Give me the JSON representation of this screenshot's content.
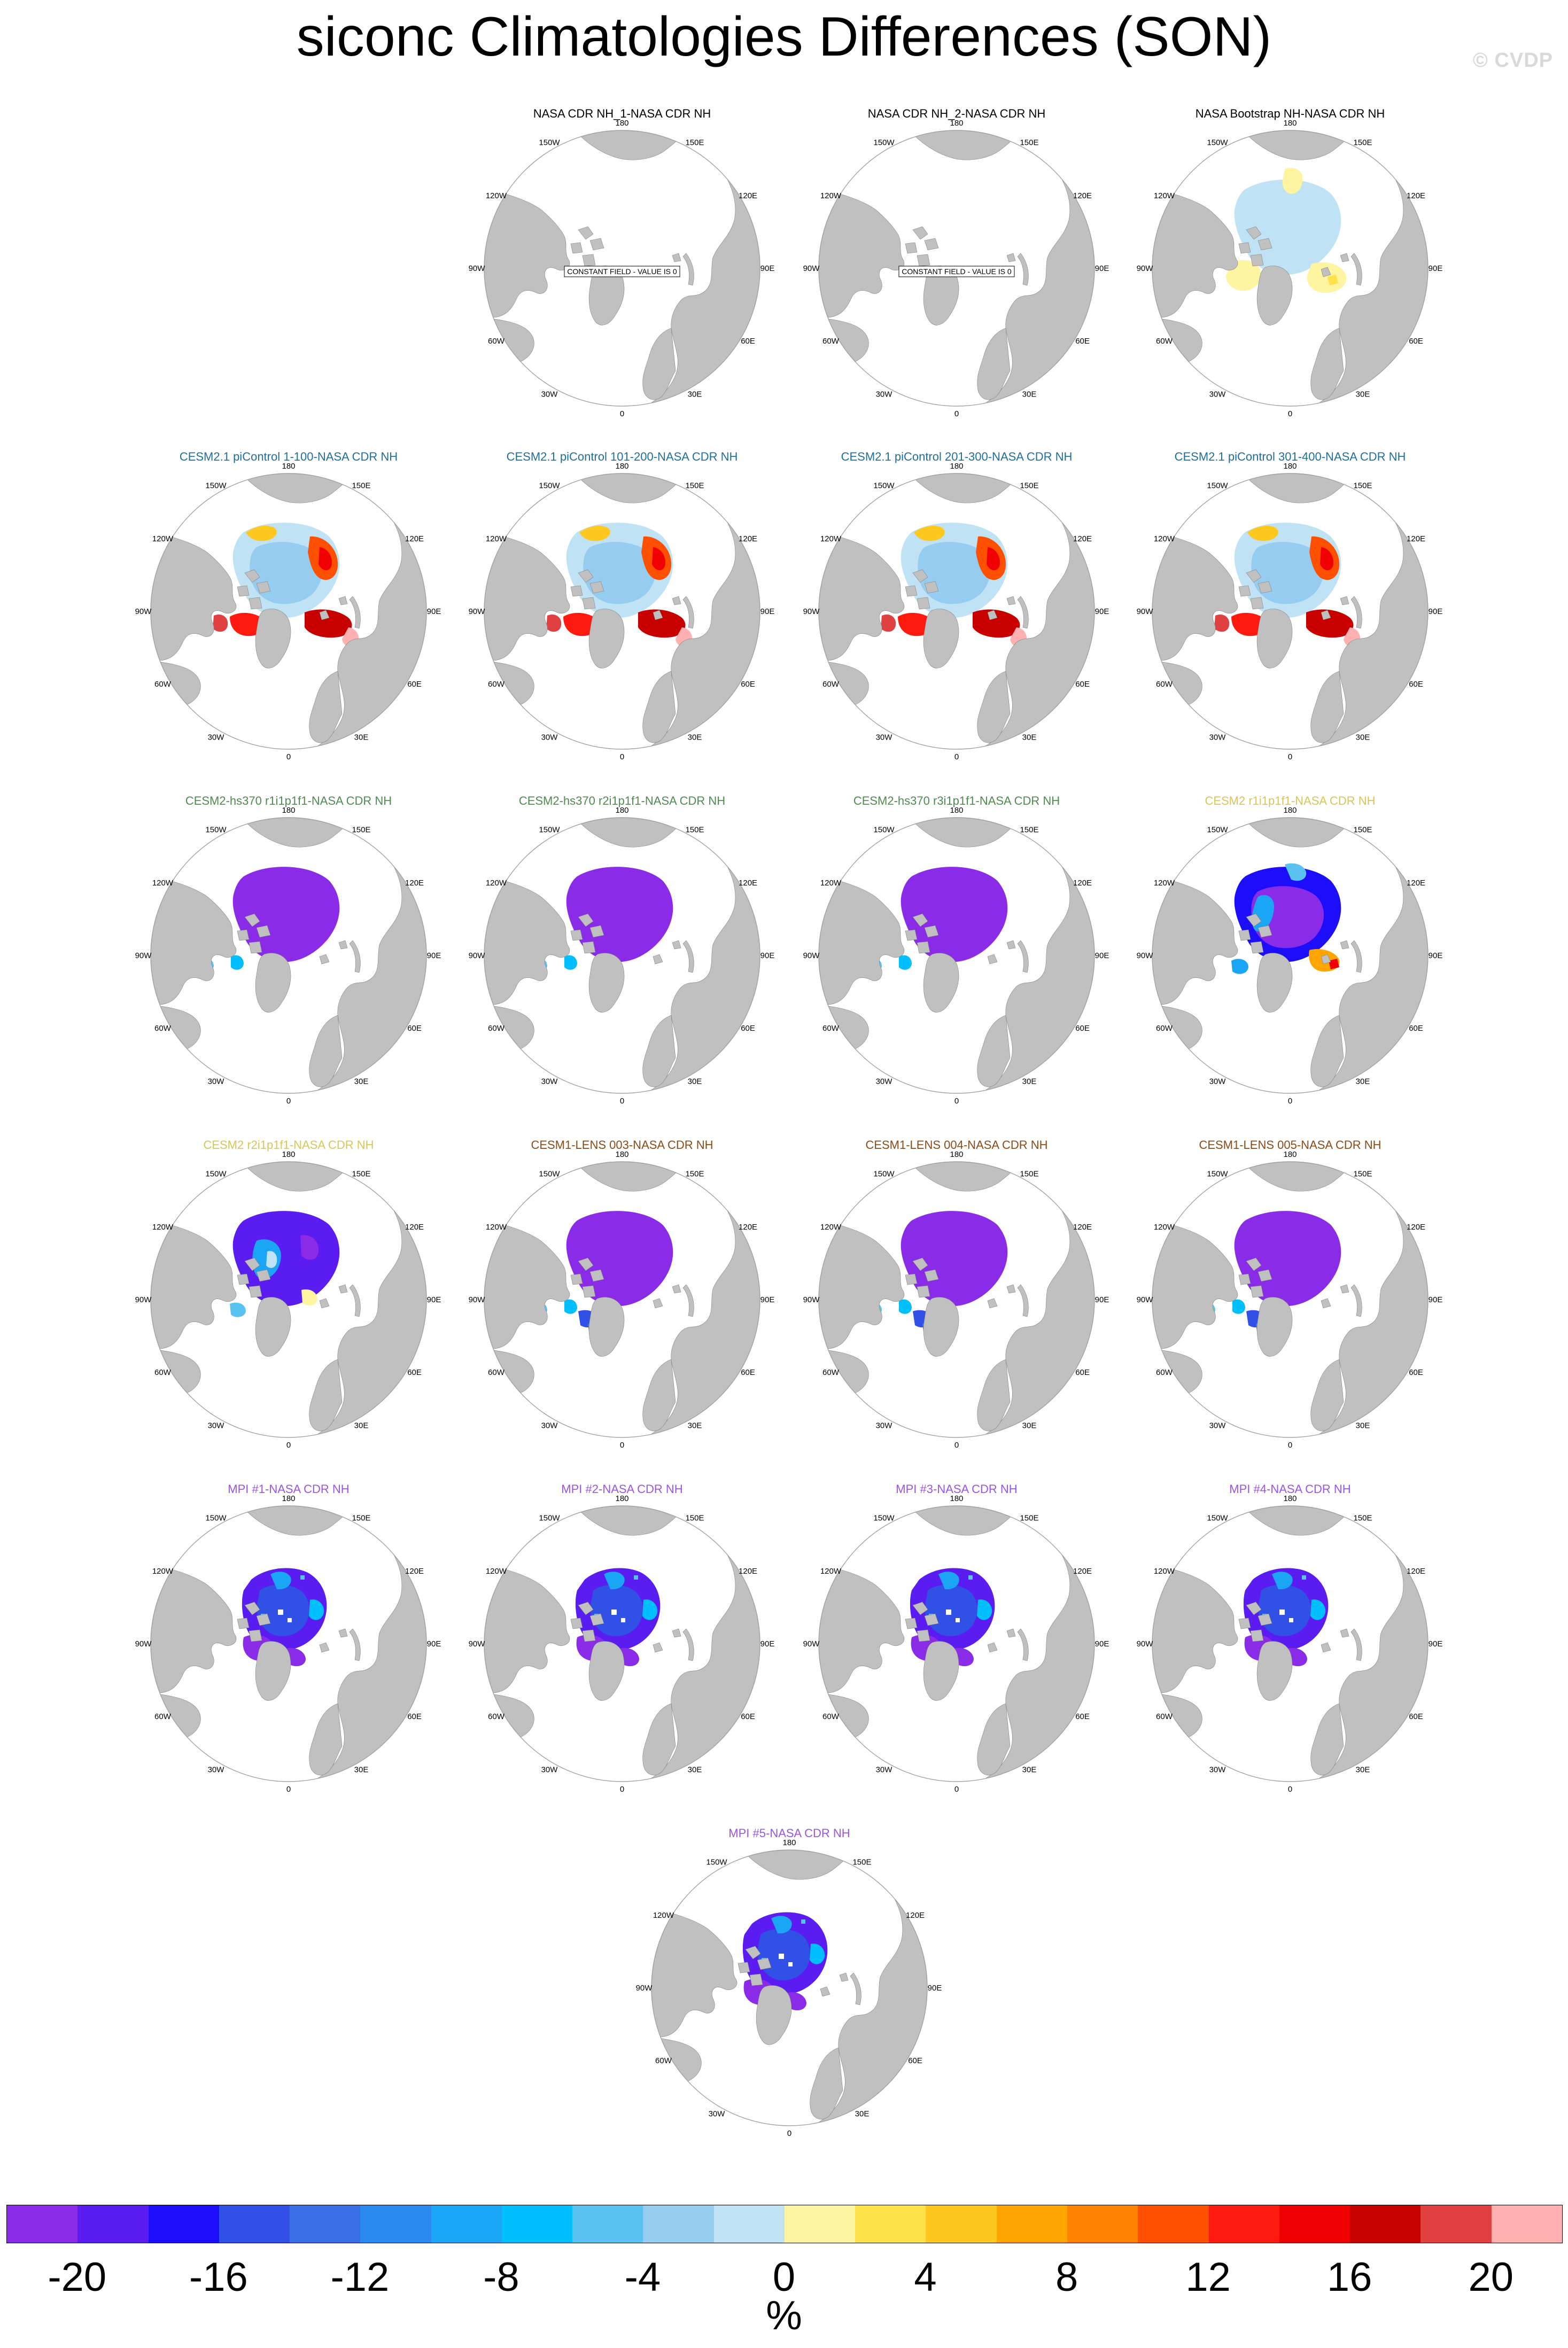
{
  "title": "siconc Climatologies Differences (SON)",
  "watermark": "© CVDP",
  "colors": {
    "ocean_zero": "#ffffff",
    "land": "#c0c0c0",
    "coast": "#808080",
    "frame": "#a0a0a0"
  },
  "lat_lon_labels": [
    "180",
    "150E",
    "120E",
    "90E",
    "60E",
    "30E",
    "0",
    "30W",
    "60W",
    "90W",
    "120W",
    "150W"
  ],
  "constant_field_note": "CONSTANT FIELD - VALUE IS 0",
  "panels": [
    {
      "title": "NASA CDR NH_1-NASA CDR NH",
      "title_color": "#000000",
      "pattern": "constant"
    },
    {
      "title": "NASA CDR NH_2-NASA CDR NH",
      "title_color": "#000000",
      "pattern": "constant"
    },
    {
      "title": "NASA Bootstrap NH-NASA CDR NH",
      "title_color": "#000000",
      "pattern": "bootstrap"
    },
    {
      "title": "CESM2.1 piControl 1-100-NASA CDR NH",
      "title_color": "#1f6e9c",
      "pattern": "picontrol"
    },
    {
      "title": "CESM2.1 piControl 101-200-NASA CDR NH",
      "title_color": "#1f6e9c",
      "pattern": "picontrol"
    },
    {
      "title": "CESM2.1 piControl 201-300-NASA CDR NH",
      "title_color": "#1f6e9c",
      "pattern": "picontrol"
    },
    {
      "title": "CESM2.1 piControl 301-400-NASA CDR NH",
      "title_color": "#1f6e9c",
      "pattern": "picontrol"
    },
    {
      "title": "CESM2-hs370 r1i1p1f1-NASA CDR NH",
      "title_color": "#4f8a50",
      "pattern": "hs370"
    },
    {
      "title": "CESM2-hs370 r2i1p1f1-NASA CDR NH",
      "title_color": "#4f8a50",
      "pattern": "hs370"
    },
    {
      "title": "CESM2-hs370 r3i1p1f1-NASA CDR NH",
      "title_color": "#4f8a50",
      "pattern": "hs370"
    },
    {
      "title": "CESM2 r1i1p1f1-NASA CDR NH",
      "title_color": "#d8c55a",
      "pattern": "cesm2r1"
    },
    {
      "title": "CESM2 r2i1p1f1-NASA CDR NH",
      "title_color": "#d8c55a",
      "pattern": "cesm2r2"
    },
    {
      "title": "CESM1-LENS 003-NASA CDR NH",
      "title_color": "#8b4a14",
      "pattern": "lens"
    },
    {
      "title": "CESM1-LENS 004-NASA CDR NH",
      "title_color": "#8b4a14",
      "pattern": "lens"
    },
    {
      "title": "CESM1-LENS 005-NASA CDR NH",
      "title_color": "#8b4a14",
      "pattern": "lens"
    },
    {
      "title": "MPI #1-NASA CDR NH",
      "title_color": "#9a55e0",
      "pattern": "mpi"
    },
    {
      "title": "MPI #2-NASA CDR NH",
      "title_color": "#9a55e0",
      "pattern": "mpi"
    },
    {
      "title": "MPI #3-NASA CDR NH",
      "title_color": "#9a55e0",
      "pattern": "mpi"
    },
    {
      "title": "MPI #4-NASA CDR NH",
      "title_color": "#9a55e0",
      "pattern": "mpi"
    },
    {
      "title": "MPI #5-NASA CDR NH",
      "title_color": "#9a55e0",
      "pattern": "mpi"
    }
  ],
  "colorbar": {
    "colors": [
      "#8a2be8",
      "#5a1cf0",
      "#1c0dfa",
      "#3050e6",
      "#3a6ee6",
      "#2a8af0",
      "#1aa5f5",
      "#00bfff",
      "#5ac2f0",
      "#96ccef",
      "#bfe3f5",
      "#fff4a0",
      "#ffe14a",
      "#ffc81e",
      "#ffa500",
      "#ff8200",
      "#ff5000",
      "#ff1a10",
      "#f00000",
      "#c80000",
      "#e04040",
      "#ffb0b0"
    ],
    "tick_labels": [
      "-20",
      "-16",
      "-12",
      "-8",
      "-4",
      "0",
      "4",
      "8",
      "12",
      "16",
      "20"
    ],
    "units": "%"
  }
}
